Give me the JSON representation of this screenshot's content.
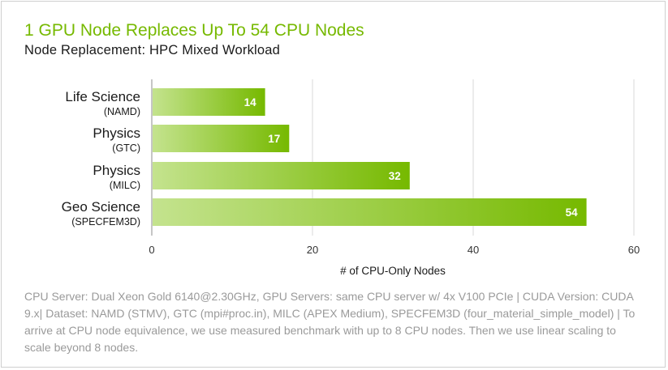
{
  "chart_data": {
    "type": "bar",
    "orientation": "horizontal",
    "title": "1 GPU Node Replaces Up To 54 CPU Nodes",
    "subtitle": "Node Replacement: HPC Mixed Workload",
    "categories": [
      {
        "name": "Life Science",
        "detail": "(NAMD)"
      },
      {
        "name": "Physics",
        "detail": "(GTC)"
      },
      {
        "name": "Physics",
        "detail": "(MILC)"
      },
      {
        "name": "Geo Science",
        "detail": "(SPECFEM3D)"
      }
    ],
    "values": [
      14,
      17,
      32,
      54
    ],
    "xlabel": "# of CPU-Only Nodes",
    "ylabel": "",
    "xlim": [
      0,
      60
    ],
    "xticks": [
      0,
      20,
      40,
      60
    ],
    "grid": true,
    "legend": "none",
    "colors": {
      "bar_start": "#c4e38e",
      "bar_end": "#76b900",
      "title": "#76b900"
    },
    "footnote": "CPU Server: Dual Xeon Gold 6140@2.30GHz, GPU Servers: same CPU server w/ 4x V100  PCIe | CUDA Version: CUDA 9.x| Dataset: NAMD (STMV), GTC (mpi#proc.in), MILC (APEX Medium), SPECFEM3D (four_material_simple_model) | To arrive at CPU node equivalence, we use measured benchmark with up to 8 CPU nodes. Then we use linear scaling to scale beyond 8 nodes."
  }
}
